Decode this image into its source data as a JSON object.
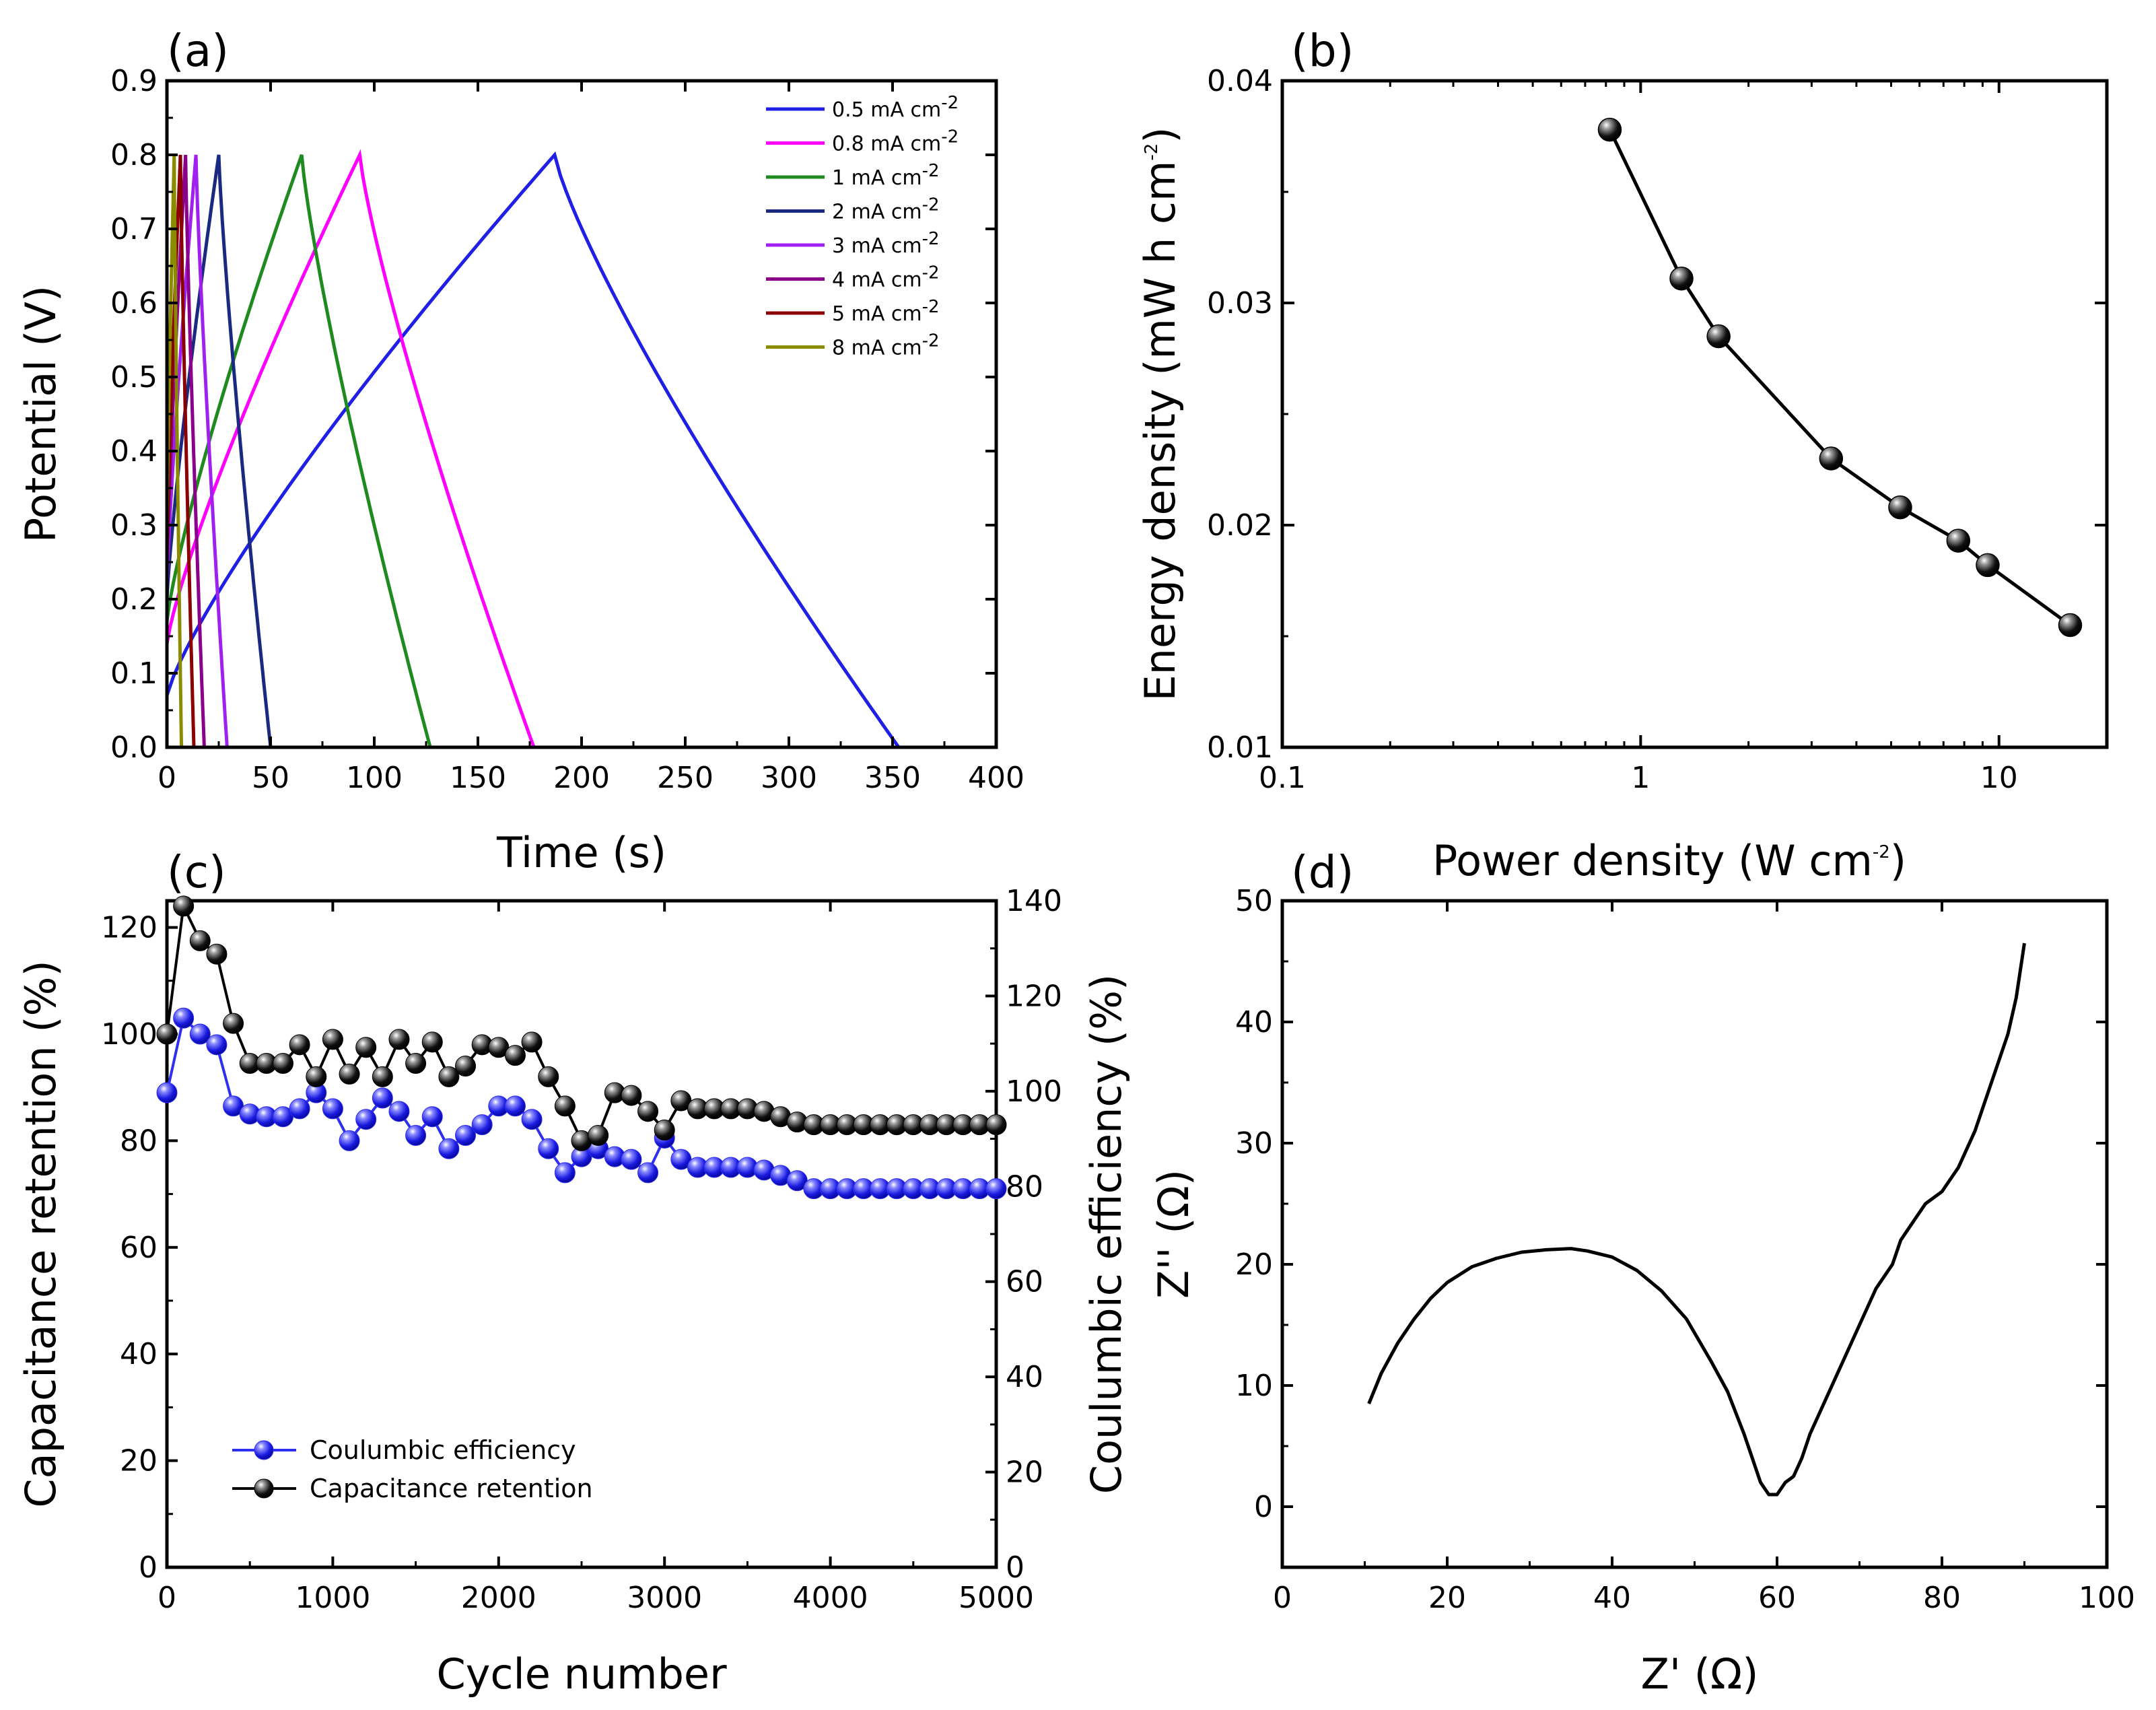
{
  "colors": {
    "blue": "#1f1fe6",
    "magenta": "#ff00ff",
    "green": "#1f8a1f",
    "navy": "#1a2a80",
    "violet": "#a020f0",
    "purple": "#8b008b",
    "darkred": "#8b0000",
    "olive": "#8b8b00",
    "ce_blue": "#2f2ff0",
    "black": "#000000"
  },
  "chart_data": [
    {
      "panel": "(a)",
      "type": "line",
      "xlabel": "Time (s)",
      "ylabel": "Potential (V)",
      "xlim": [
        0,
        400
      ],
      "ylim": [
        0,
        0.9
      ],
      "xticks": [
        "0",
        "50",
        "100",
        "150",
        "200",
        "250",
        "300",
        "350",
        "400"
      ],
      "yticks": [
        "0.0",
        "0.1",
        "0.2",
        "0.3",
        "0.4",
        "0.5",
        "0.6",
        "0.7",
        "0.8",
        "0.9"
      ],
      "legend_position": "top-right",
      "series": [
        {
          "name": "0.5 mA cm",
          "sup": "-2",
          "color": "#1f1fe6",
          "t_start": 0,
          "v_start": 0.07,
          "t_peak": 187,
          "v_peak": 0.8,
          "t_end": 353
        },
        {
          "name": "0.8 mA cm",
          "sup": "-2",
          "color": "#ff00ff",
          "t_start": 0,
          "v_start": 0.14,
          "t_peak": 93,
          "v_peak": 0.8,
          "t_end": 177
        },
        {
          "name": "1 mA cm",
          "sup": "-2",
          "color": "#1f8a1f",
          "t_start": 0,
          "v_start": 0.17,
          "t_peak": 65,
          "v_peak": 0.8,
          "t_end": 127
        },
        {
          "name": "2 mA cm",
          "sup": "-2",
          "color": "#1a2a80",
          "t_start": 0,
          "v_start": 0.2,
          "t_peak": 25,
          "v_peak": 0.8,
          "t_end": 50
        },
        {
          "name": "3 mA cm",
          "sup": "-2",
          "color": "#a020f0",
          "t_start": 0,
          "v_start": 0.22,
          "t_peak": 14,
          "v_peak": 0.8,
          "t_end": 29
        },
        {
          "name": "4 mA cm",
          "sup": "-2",
          "color": "#8b008b",
          "t_start": 0,
          "v_start": 0.24,
          "t_peak": 9,
          "v_peak": 0.8,
          "t_end": 18
        },
        {
          "name": "5 mA cm",
          "sup": "-2",
          "color": "#8b0000",
          "t_start": 0,
          "v_start": 0.26,
          "t_peak": 6.5,
          "v_peak": 0.8,
          "t_end": 13
        },
        {
          "name": "8 mA cm",
          "sup": "-2",
          "color": "#8b8b00",
          "t_start": 0,
          "v_start": 0.3,
          "t_peak": 3.5,
          "v_peak": 0.8,
          "t_end": 7
        }
      ]
    },
    {
      "panel": "(b)",
      "type": "line",
      "xlabel": "Power density (W cm",
      "xlabel_sup": "-2",
      "xlabel_end": ")",
      "ylabel": "Energy density (mW h cm",
      "ylabel_sup": "-2",
      "ylabel_end": ")",
      "xscale": "log",
      "xlim": [
        0.1,
        20
      ],
      "ylim": [
        0.01,
        0.04
      ],
      "xticks": [
        "0.1",
        "1",
        "10"
      ],
      "yticks": [
        "0.01",
        "0.02",
        "0.03",
        "0.04"
      ],
      "x": [
        0.82,
        1.3,
        1.65,
        3.4,
        5.3,
        7.7,
        9.3,
        15.8
      ],
      "y": [
        0.0378,
        0.0311,
        0.0285,
        0.023,
        0.0208,
        0.0193,
        0.0182,
        0.0155
      ]
    },
    {
      "panel": "(c)",
      "type": "scatter",
      "xlabel": "Cycle number",
      "ylabel": "Capacitance retention (%)",
      "y2label": "Coulumbic efficiency (%)",
      "xlim": [
        0,
        5000
      ],
      "ylim": [
        0,
        125
      ],
      "y2lim": [
        0,
        140
      ],
      "xticks": [
        "0",
        "1000",
        "2000",
        "3000",
        "4000",
        "5000"
      ],
      "yticks": [
        "0",
        "20",
        "40",
        "60",
        "80",
        "100",
        "120"
      ],
      "y2ticks": [
        "0",
        "20",
        "40",
        "60",
        "80",
        "100",
        "120",
        "140"
      ],
      "legend_position": "bottom-left",
      "series": [
        {
          "name": "Coulumbic efficiency",
          "axis": "left",
          "color": "#2f2ff0",
          "x": [
            0,
            100,
            200,
            300,
            400,
            500,
            600,
            700,
            800,
            900,
            1000,
            1100,
            1200,
            1300,
            1400,
            1500,
            1600,
            1700,
            1800,
            1900,
            2000,
            2100,
            2200,
            2300,
            2400,
            2500,
            2600,
            2700,
            2800,
            2900,
            3000,
            3100,
            3200,
            3300,
            3400,
            3500,
            3600,
            3700,
            3800,
            3900,
            4000,
            4100,
            4200,
            4300,
            4400,
            4500,
            4600,
            4700,
            4800,
            4900,
            5000
          ],
          "y": [
            89,
            103,
            100,
            98,
            86.5,
            85,
            84.5,
            84.5,
            86,
            89,
            86,
            80,
            84,
            88,
            85.5,
            81,
            84.5,
            78.5,
            81,
            83,
            86.5,
            86.5,
            84,
            78.5,
            74,
            77,
            78.5,
            77,
            76.5,
            74,
            80.5,
            76.5,
            75,
            75,
            75,
            75,
            74.5,
            73.5,
            72.5,
            71,
            71,
            71,
            71,
            71,
            71,
            71,
            71,
            71,
            71,
            71,
            71
          ]
        },
        {
          "name": "Capacitance retention",
          "axis": "left",
          "color": "#000000",
          "x": [
            0,
            100,
            200,
            300,
            400,
            500,
            600,
            700,
            800,
            900,
            1000,
            1100,
            1200,
            1300,
            1400,
            1500,
            1600,
            1700,
            1800,
            1900,
            2000,
            2100,
            2200,
            2300,
            2400,
            2500,
            2600,
            2700,
            2800,
            2900,
            3000,
            3100,
            3200,
            3300,
            3400,
            3500,
            3600,
            3700,
            3800,
            3900,
            4000,
            4100,
            4200,
            4300,
            4400,
            4500,
            4600,
            4700,
            4800,
            4900,
            5000
          ],
          "y": [
            100,
            124,
            117.5,
            115,
            102,
            94.5,
            94.5,
            94.5,
            98,
            92,
            99,
            92.5,
            97.5,
            92,
            99,
            94.5,
            98.5,
            92,
            94,
            98,
            97.5,
            96,
            98.5,
            92,
            86.5,
            80,
            81,
            89,
            88.5,
            85.5,
            82,
            87.5,
            86,
            86,
            86,
            86,
            85.5,
            84.5,
            83.5,
            83,
            83,
            83,
            83,
            83,
            83,
            83,
            83,
            83,
            83,
            83,
            83
          ]
        }
      ]
    },
    {
      "panel": "(d)",
      "type": "line",
      "xlabel": "Z' (Ω)",
      "ylabel": "Z'' (Ω)",
      "xlim": [
        0,
        100
      ],
      "ylim": [
        -5,
        50
      ],
      "xticks": [
        "0",
        "20",
        "40",
        "60",
        "80",
        "100"
      ],
      "yticks": [
        "0",
        "10",
        "20",
        "30",
        "40",
        "50"
      ],
      "x": [
        10.5,
        12,
        14,
        16,
        18,
        20,
        23,
        26,
        29,
        32,
        35,
        37,
        40,
        43,
        46,
        49,
        52,
        54,
        56,
        57,
        58,
        59,
        60,
        61,
        62,
        63,
        64,
        66,
        68,
        70,
        72,
        74,
        75,
        76,
        78,
        80,
        82,
        84,
        86,
        88,
        89,
        90
      ],
      "y": [
        8.5,
        11,
        13.5,
        15.5,
        17.2,
        18.5,
        19.8,
        20.5,
        21,
        21.2,
        21.3,
        21.1,
        20.6,
        19.5,
        17.8,
        15.5,
        12,
        9.5,
        6,
        4,
        2,
        1,
        1,
        2,
        2.5,
        4,
        6,
        9,
        12,
        15,
        18,
        20,
        22,
        23,
        25,
        26,
        28,
        31,
        35,
        39,
        42,
        46.5
      ]
    }
  ]
}
